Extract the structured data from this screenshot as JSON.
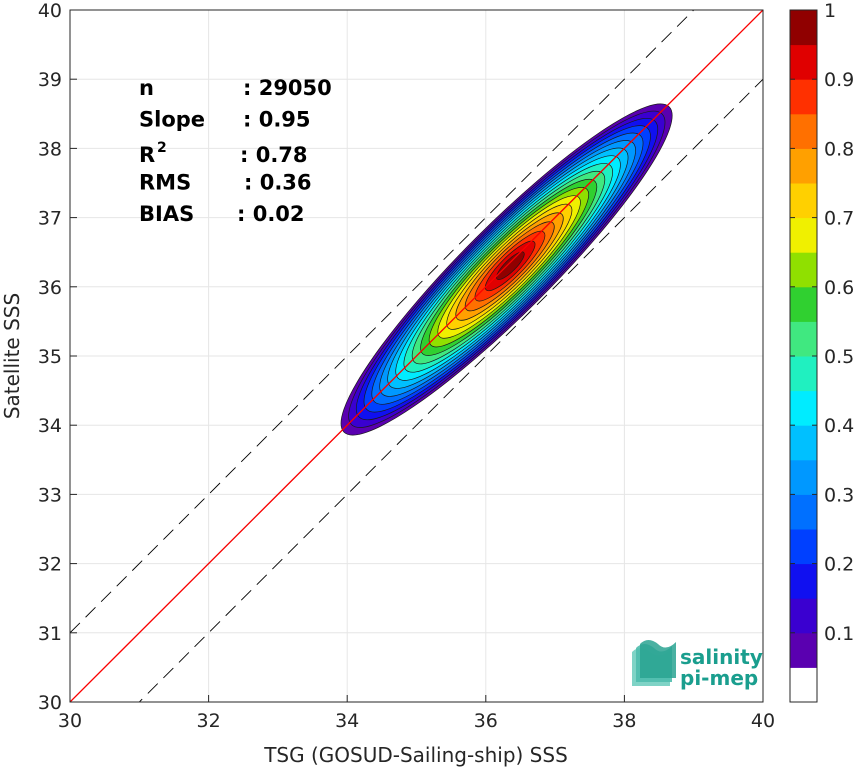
{
  "chart_data": {
    "type": "heatmap",
    "xlabel": "TSG (GOSUD-Sailing-ship) SSS",
    "ylabel": "Satellite SSS",
    "xlim": [
      30,
      40
    ],
    "ylim": [
      30,
      40
    ],
    "xticks": [
      "30",
      "32",
      "34",
      "36",
      "38",
      "40"
    ],
    "yticks": [
      "30",
      "31",
      "32",
      "33",
      "34",
      "35",
      "36",
      "37",
      "38",
      "39",
      "40"
    ],
    "grid": true,
    "stats": [
      {
        "key": "n",
        "value": ": 29050"
      },
      {
        "key": "Slope",
        "value": ": 0.95"
      },
      {
        "key": "R",
        "sup": "2",
        "value": ": 0.78"
      },
      {
        "key": "RMS",
        "value": ": 0.36"
      },
      {
        "key": "BIAS",
        "value": ": 0.02"
      }
    ],
    "reference_lines": {
      "one_to_one": {
        "slope": 1,
        "intercept": 0,
        "style": "solid",
        "color": "#000000"
      },
      "bounds": {
        "offset": 1,
        "style": "dashed",
        "color": "#000000"
      },
      "regression": {
        "slope": 0.95,
        "intercept_at": {
          "x": 30,
          "y": 30.0
        },
        "color": "#ff0000"
      }
    },
    "density": {
      "center": [
        36.3,
        36.25
      ],
      "major_axis_deg_in_data": 45,
      "levels": [
        0.05,
        0.1,
        0.15,
        0.2,
        0.25,
        0.3,
        0.35,
        0.4,
        0.45,
        0.5,
        0.55,
        0.6,
        0.65,
        0.7,
        0.75,
        0.8,
        0.85,
        0.9,
        0.95
      ],
      "level_colors": [
        "#5a00b0",
        "#3a00d0",
        "#1010f0",
        "#0040ff",
        "#0070ff",
        "#0098ff",
        "#00c0ff",
        "#00ecff",
        "#20f0c0",
        "#40e880",
        "#30d030",
        "#90e000",
        "#f0f000",
        "#ffd000",
        "#ffa000",
        "#ff7000",
        "#ff3000",
        "#e00000",
        "#900000"
      ]
    },
    "colorbar": {
      "ticks": [
        "1",
        "0.9",
        "0.8",
        "0.7",
        "0.6",
        "0.5",
        "0.4",
        "0.3",
        "0.2",
        "0.1"
      ],
      "range": [
        0,
        1
      ],
      "bottom_color": "#ffffff"
    }
  },
  "logo": {
    "line1": "salinity",
    "line2": "pi-mep",
    "color": "#1a9e8e"
  }
}
